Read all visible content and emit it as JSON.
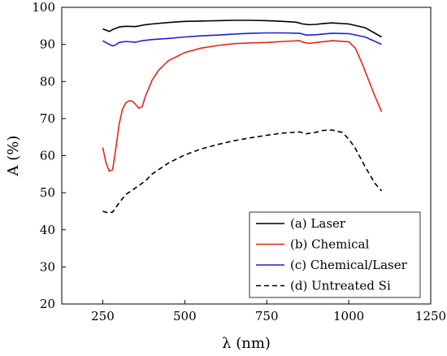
{
  "chart_data": {
    "type": "line",
    "xlabel": "λ (nm)",
    "ylabel": "A (%)",
    "xlim": [
      125,
      1250
    ],
    "ylim": [
      20,
      100
    ],
    "xticks": [
      250,
      500,
      750,
      1000,
      1250
    ],
    "yticks": [
      20,
      30,
      40,
      50,
      60,
      70,
      80,
      90,
      100
    ],
    "grid": false,
    "legend_position": "bottom-right",
    "series": [
      {
        "name": "(a) Laser",
        "color": "#000000",
        "dash": "solid",
        "x": [
          250,
          270,
          280,
          300,
          320,
          350,
          380,
          400,
          450,
          500,
          550,
          600,
          650,
          700,
          750,
          800,
          840,
          860,
          880,
          900,
          920,
          950,
          1000,
          1050,
          1100
        ],
        "y": [
          94.2,
          93.5,
          94.0,
          94.7,
          94.9,
          94.8,
          95.3,
          95.5,
          95.9,
          96.2,
          96.3,
          96.4,
          96.5,
          96.5,
          96.4,
          96.2,
          96.0,
          95.5,
          95.3,
          95.4,
          95.6,
          95.8,
          95.5,
          94.5,
          92.0
        ]
      },
      {
        "name": "(b) Chemical",
        "color": "#e8221f",
        "dash": "solid",
        "x": [
          250,
          260,
          270,
          280,
          290,
          300,
          310,
          320,
          330,
          340,
          350,
          360,
          370,
          380,
          400,
          420,
          450,
          500,
          550,
          600,
          650,
          700,
          750,
          800,
          850,
          860,
          880,
          900,
          950,
          1000,
          1020,
          1040,
          1060,
          1080,
          1100
        ],
        "y": [
          62.2,
          58.0,
          55.8,
          56.2,
          62.0,
          68.5,
          72.5,
          74.2,
          74.8,
          74.7,
          73.8,
          72.8,
          73.2,
          76.0,
          80.3,
          83.0,
          85.6,
          87.8,
          89.0,
          89.7,
          90.2,
          90.4,
          90.5,
          90.8,
          91.0,
          90.6,
          90.3,
          90.5,
          91.0,
          90.7,
          89.0,
          85.0,
          80.5,
          76.0,
          71.8
        ]
      },
      {
        "name": "(c) Chemical/Laser",
        "color": "#1f1fd6",
        "dash": "solid",
        "x": [
          250,
          265,
          280,
          290,
          300,
          320,
          350,
          370,
          400,
          450,
          500,
          550,
          600,
          650,
          700,
          750,
          800,
          850,
          870,
          900,
          920,
          950,
          1000,
          1050,
          1100
        ],
        "y": [
          91.0,
          90.2,
          89.6,
          89.9,
          90.5,
          90.8,
          90.6,
          91.0,
          91.3,
          91.6,
          92.0,
          92.3,
          92.5,
          92.8,
          93.0,
          93.1,
          93.1,
          93.0,
          92.5,
          92.6,
          92.8,
          93.0,
          92.9,
          92.0,
          90.0
        ]
      },
      {
        "name": "(d) Untreated Si",
        "color": "#000000",
        "dash": "dashed",
        "x": [
          250,
          265,
          280,
          290,
          300,
          320,
          350,
          380,
          400,
          450,
          500,
          550,
          600,
          650,
          700,
          750,
          800,
          850,
          870,
          900,
          920,
          950,
          980,
          1000,
          1020,
          1050,
          1080,
          1100
        ],
        "y": [
          45.0,
          44.6,
          44.8,
          46.0,
          47.3,
          49.5,
          51.3,
          53.2,
          55.0,
          58.0,
          60.2,
          61.8,
          63.0,
          64.0,
          64.8,
          65.5,
          66.1,
          66.4,
          65.9,
          66.3,
          66.8,
          66.9,
          66.3,
          64.5,
          62.0,
          57.0,
          52.5,
          50.5
        ]
      }
    ]
  }
}
